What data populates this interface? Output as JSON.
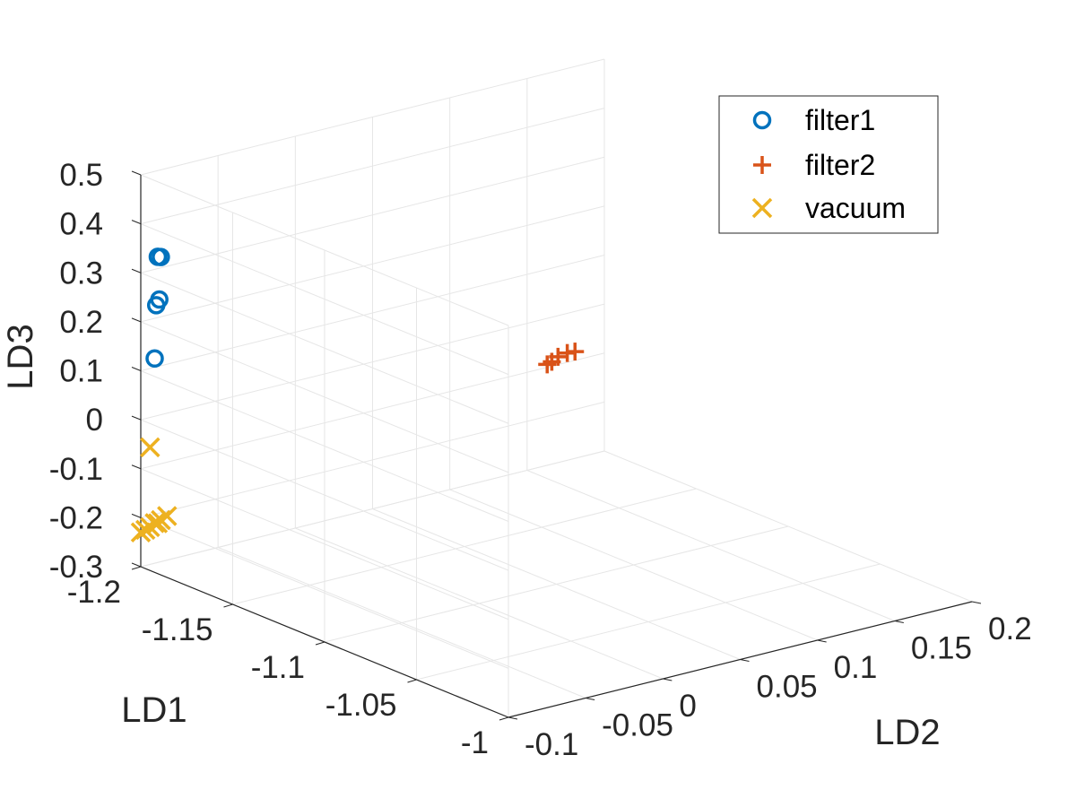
{
  "chart_data": {
    "type": "scatter",
    "projection": "3d",
    "title": "",
    "xlabel": "LD1",
    "ylabel": "LD2",
    "zlabel": "LD3",
    "xlim": [
      -1.2,
      -1.0
    ],
    "ylim": [
      -0.1,
      0.2
    ],
    "zlim": [
      -0.3,
      0.5
    ],
    "xticks": [
      "-1.2",
      "-1.15",
      "-1.1",
      "-1.05",
      "-1"
    ],
    "yticks": [
      "-0.1",
      "-0.05",
      "0",
      "0.05",
      "0.1",
      "0.15",
      "0.2"
    ],
    "zticks": [
      "-0.3",
      "-0.2",
      "-0.1",
      "0",
      "0.1",
      "0.2",
      "0.3",
      "0.4",
      "0.5"
    ],
    "grid": true,
    "legend_position": "top-right",
    "series": [
      {
        "name": "filter1",
        "marker": "circle",
        "color": "#0072BD",
        "points": [
          {
            "x": -1.2,
            "y": -0.089,
            "z": 0.324
          },
          {
            "x": -1.2,
            "y": -0.087,
            "z": 0.322
          },
          {
            "x": -1.2,
            "y": -0.088,
            "z": 0.236
          },
          {
            "x": -1.2,
            "y": -0.09,
            "z": 0.226
          },
          {
            "x": -1.2,
            "y": -0.091,
            "z": 0.118
          }
        ]
      },
      {
        "name": "filter2",
        "marker": "plus",
        "color": "#D95319",
        "points": [
          {
            "x": -1.2,
            "y": 0.163,
            "z": -0.094
          },
          {
            "x": -1.2,
            "y": 0.166,
            "z": -0.091
          },
          {
            "x": -1.2,
            "y": 0.17,
            "z": -0.084
          },
          {
            "x": -1.2,
            "y": 0.176,
            "z": -0.081
          },
          {
            "x": -1.2,
            "y": 0.181,
            "z": -0.082
          }
        ]
      },
      {
        "name": "vacuum",
        "marker": "x",
        "color": "#EDB120",
        "points": [
          {
            "x": -1.2,
            "y": -0.094,
            "z": -0.061
          },
          {
            "x": -1.2,
            "y": -0.1,
            "z": -0.23
          },
          {
            "x": -1.2,
            "y": -0.097,
            "z": -0.227
          },
          {
            "x": -1.2,
            "y": -0.094,
            "z": -0.224
          },
          {
            "x": -1.2,
            "y": -0.091,
            "z": -0.218
          },
          {
            "x": -1.2,
            "y": -0.089,
            "z": -0.22
          },
          {
            "x": -1.2,
            "y": -0.087,
            "z": -0.215
          },
          {
            "x": -1.2,
            "y": -0.083,
            "z": -0.21
          }
        ]
      }
    ]
  }
}
